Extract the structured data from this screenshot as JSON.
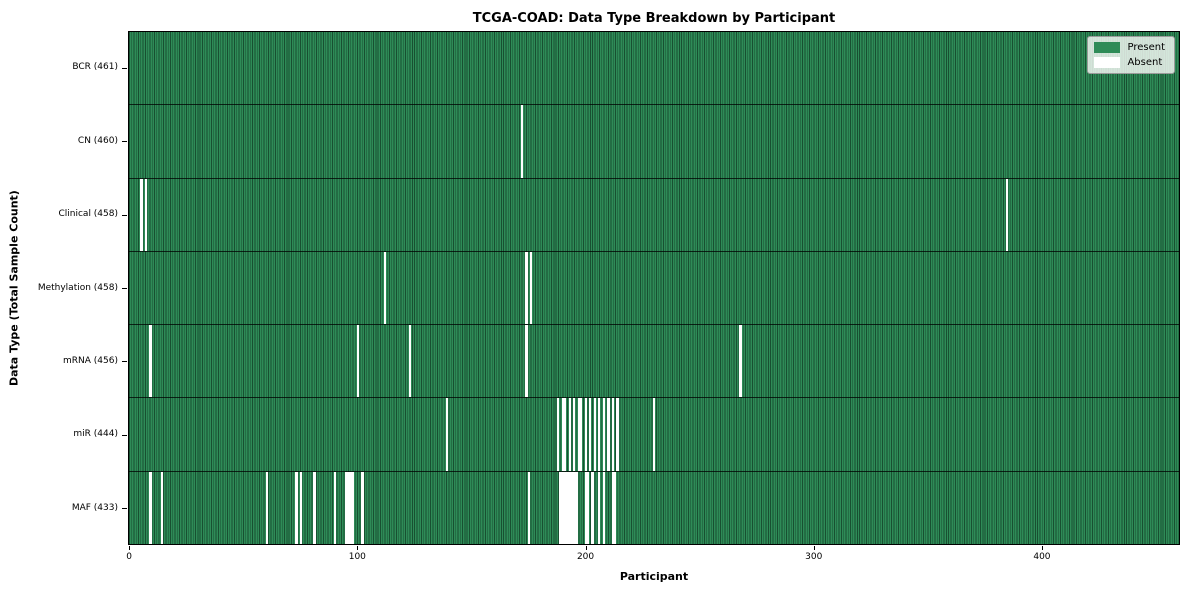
{
  "chart_data": {
    "type": "heatmap",
    "title": "TCGA-COAD: Data Type Breakdown by Participant",
    "xlabel": "Participant",
    "ylabel": "Data Type (Total Sample Count)",
    "n_participants": 461,
    "x_ticks": [
      0,
      100,
      200,
      300,
      400
    ],
    "grid": false,
    "legend_position": "upper right",
    "legend": {
      "present_label": "Present",
      "absent_label": "Absent"
    },
    "colors": {
      "present": "#2e8b57",
      "absent": "#ffffff",
      "cell_edge": "#143d26",
      "legend_face": "#eef2ee"
    },
    "rows": [
      {
        "label": "BCR (461)",
        "data_type": "BCR",
        "total_samples": 461,
        "absent_participants": []
      },
      {
        "label": "CN (460)",
        "data_type": "CN",
        "total_samples": 460,
        "absent_participants": [
          172
        ]
      },
      {
        "label": "Clinical (458)",
        "data_type": "Clinical",
        "total_samples": 458,
        "absent_participants": [
          5,
          7,
          385
        ]
      },
      {
        "label": "Methylation (458)",
        "data_type": "Methylation",
        "total_samples": 458,
        "absent_participants": [
          112,
          174,
          176
        ]
      },
      {
        "label": "mRNA (456)",
        "data_type": "mRNA",
        "total_samples": 456,
        "absent_participants": [
          9,
          100,
          123,
          174,
          268
        ]
      },
      {
        "label": "miR (444)",
        "data_type": "miR",
        "total_samples": 444,
        "absent_participants": [
          139,
          188,
          190,
          191,
          193,
          195,
          197,
          198,
          200,
          202,
          204,
          206,
          208,
          210,
          212,
          214,
          230
        ]
      },
      {
        "label": "MAF (433)",
        "data_type": "MAF",
        "total_samples": 433,
        "absent_participants": [
          9,
          14,
          60,
          73,
          75,
          81,
          90,
          95,
          96,
          97,
          98,
          102,
          175,
          189,
          190,
          191,
          192,
          193,
          194,
          195,
          196,
          200,
          201,
          203,
          206,
          208,
          212,
          213
        ]
      }
    ]
  }
}
